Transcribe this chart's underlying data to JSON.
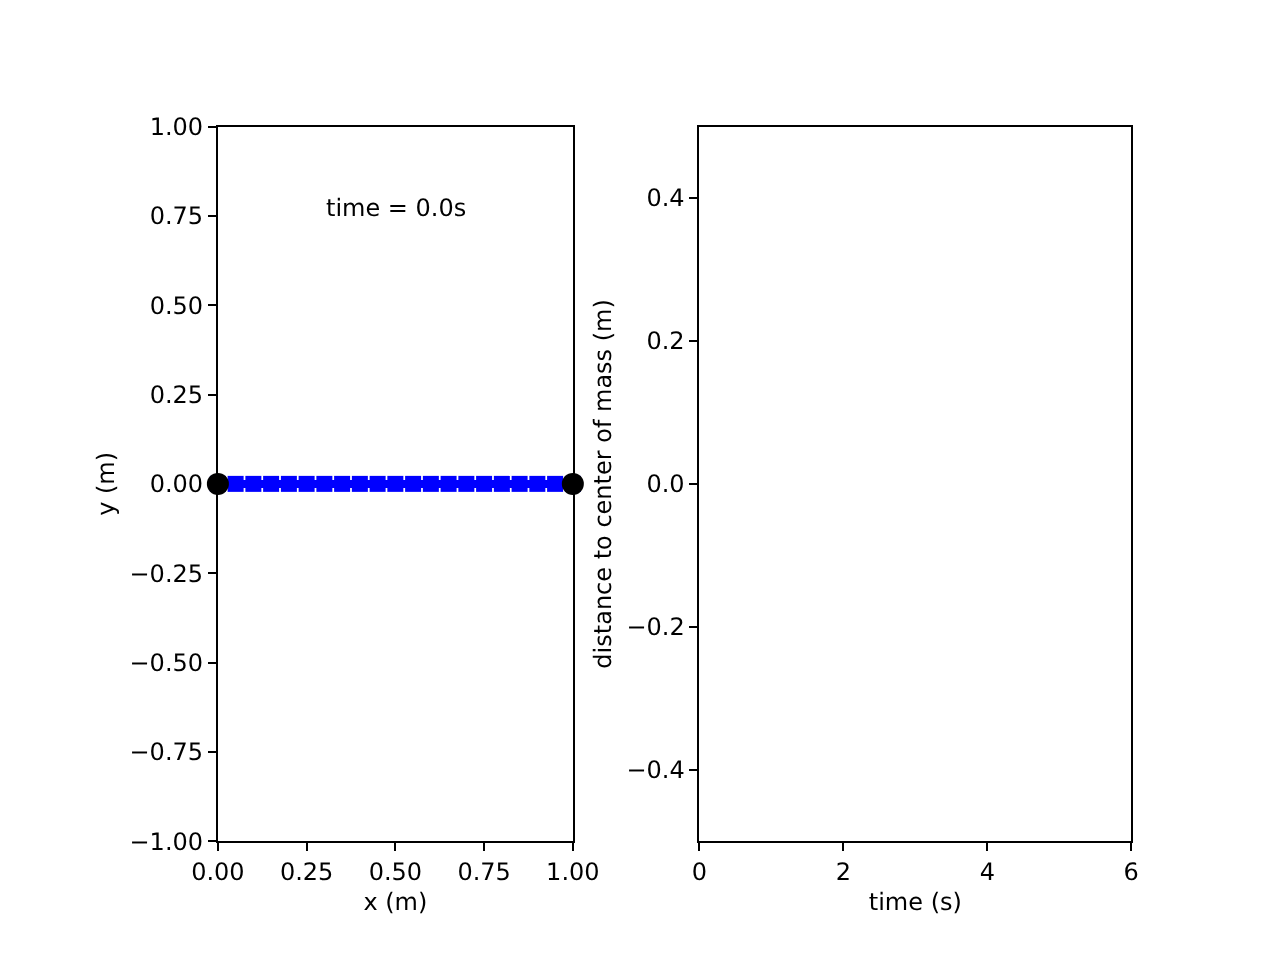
{
  "chart_data": [
    {
      "type": "line",
      "xlabel": "x (m)",
      "ylabel": "y (m)",
      "annotations": [
        "time = 0.0s"
      ],
      "xlim": [
        0,
        1
      ],
      "ylim": [
        -1,
        1
      ],
      "xticks": [
        {
          "value": 0,
          "label": "0.00"
        },
        {
          "value": 0.25,
          "label": "0.25"
        },
        {
          "value": 0.5,
          "label": "0.50"
        },
        {
          "value": 0.75,
          "label": "0.75"
        },
        {
          "value": 1,
          "label": "1.00"
        }
      ],
      "yticks": [
        {
          "value": -1,
          "label": "−1.00"
        },
        {
          "value": -0.75,
          "label": "−0.75"
        },
        {
          "value": -0.5,
          "label": "−0.50"
        },
        {
          "value": -0.25,
          "label": "−0.25"
        },
        {
          "value": 0,
          "label": "0.00"
        },
        {
          "value": 0.25,
          "label": "0.25"
        },
        {
          "value": 0.5,
          "label": "0.50"
        },
        {
          "value": 0.75,
          "label": "0.75"
        },
        {
          "value": 1,
          "label": "1.00"
        }
      ],
      "series": [
        {
          "color": "#0000ff",
          "marker": "square",
          "x": [
            0,
            0.05,
            0.1,
            0.15,
            0.2,
            0.25,
            0.3,
            0.35,
            0.4,
            0.45,
            0.5,
            0.55,
            0.6,
            0.65,
            0.7,
            0.75,
            0.8,
            0.85,
            0.9,
            0.95,
            1
          ],
          "values": [
            0,
            0,
            0,
            0,
            0,
            0,
            0,
            0,
            0,
            0,
            0,
            0,
            0,
            0,
            0,
            0,
            0,
            0,
            0,
            0,
            0
          ]
        },
        {
          "type": "scatter",
          "color": "#000000",
          "marker": "circle",
          "x": [
            0,
            1
          ],
          "values": [
            0,
            0
          ]
        }
      ]
    },
    {
      "type": "line",
      "xlabel": "time (s)",
      "ylabel": "distance to center of mass (m)",
      "xlim": [
        0,
        6
      ],
      "ylim": [
        -0.5,
        0.5
      ],
      "xticks": [
        0,
        2,
        4,
        6
      ],
      "yticks": [
        {
          "value": -0.4,
          "label": "−0.4"
        },
        {
          "value": -0.2,
          "label": "−0.2"
        },
        {
          "value": 0,
          "label": "0.0"
        },
        {
          "value": 0.2,
          "label": "0.2"
        },
        {
          "value": 0.4,
          "label": "0.4"
        }
      ]
    }
  ]
}
